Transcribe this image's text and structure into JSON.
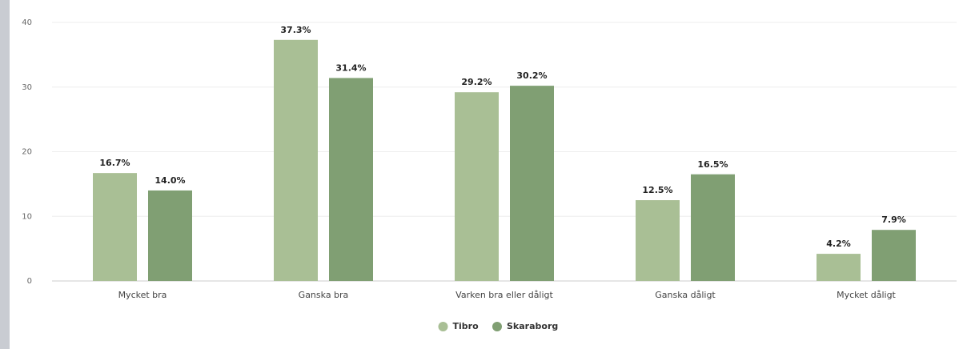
{
  "chart_data": {
    "type": "bar",
    "categories": [
      "Mycket bra",
      "Ganska bra",
      "Varken bra eller dåligt",
      "Ganska dåligt",
      "Mycket dåligt"
    ],
    "series": [
      {
        "name": "Tibro",
        "color": "#a9bf95",
        "values": [
          16.7,
          37.3,
          29.2,
          12.5,
          4.2
        ],
        "value_labels": [
          "16.7%",
          "37.3%",
          "29.2%",
          "12.5%",
          "4.2%"
        ]
      },
      {
        "name": "Skaraborg",
        "color": "#809f73",
        "values": [
          14.0,
          31.4,
          30.2,
          16.5,
          7.9
        ],
        "value_labels": [
          "14.0%",
          "31.4%",
          "30.2%",
          "16.5%",
          "7.9%"
        ]
      }
    ],
    "ylim": [
      0,
      40
    ],
    "yticks": [
      0,
      10,
      20,
      30,
      40
    ],
    "grid": true,
    "legend": "bottom"
  }
}
